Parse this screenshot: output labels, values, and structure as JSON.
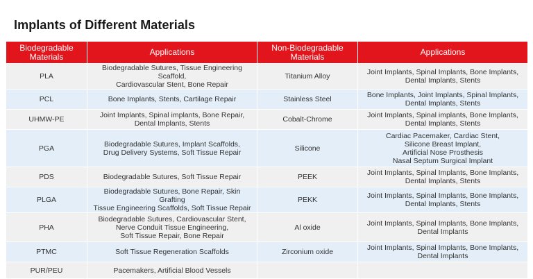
{
  "title": "Implants of Different Materials",
  "headers": [
    "Biodegradable\nMaterials",
    "Applications",
    "Non-Biodegradable\nMaterials",
    "Applications"
  ],
  "rows": [
    [
      "PLA",
      "Biodegradable Sutures, Tissue Engineering Scaffold,\nCardiovascular Stent, Bone Repair",
      "Titanium Alloy",
      "Joint Implants, Spinal Implants, Bone Implants,\nDental Implants, Stents"
    ],
    [
      "PCL",
      "Bone Implants, Stents, Cartilage Repair",
      "Stainless Steel",
      "Bone Implants, Joint Implants, Spinal Implants,\nDental Implants, Stents"
    ],
    [
      "UHMW-PE",
      "Joint Implants, Spinal implants, Bone Repair,\nDental Implants, Stents",
      "Cobalt-Chrome",
      "Joint Implants, Spinal implants, Bone Implants,\nDental Implants, Stents"
    ],
    [
      "PGA",
      "Biodegradable Sutures, Implant Scaffolds,\nDrug Delivery Systems, Soft Tissue Repair",
      "Silicone",
      "Cardiac Pacemaker, Cardiac Stent,\nSilicone Breast Implant,\nArtificial Nose Prosthesis\nNasal Septum Surgical Implant"
    ],
    [
      "PDS",
      "Biodegradable Sutures, Soft Tissue Repair",
      "PEEK",
      "Joint Implants, Spinal Implants, Bone Implants,\nDental Implants, Stents"
    ],
    [
      "PLGA",
      "Biodegradable Sutures, Bone Repair, Skin Grafting\nTissue Engineering Scaffolds, Soft Tissue Repair",
      "PEKK",
      "Joint Implants, Spinal Implants, Bone Implants,\nDental Implants, Stents"
    ],
    [
      "PHA",
      "Biodegradable Sutures, Cardiovascular Stent,\nNerve Conduit Tissue Engineering,\nSoft Tissue Repair, Bone Repair",
      "Al oxide",
      "Joint Implants, Spinal Implants, Bone Implants,\nDental Implants"
    ],
    [
      "PTMC",
      "Soft Tissue Regeneration Scaffolds",
      "Zirconium oxide",
      "Joint Implants, Spinal Implants, Bone Implants,\nDental Implants"
    ],
    [
      "PUR/PEU",
      "Pacemakers, Artificial Blood Vessels",
      "",
      ""
    ]
  ],
  "colors": {
    "header_bg": "#e2141c",
    "header_text": "#ffffff",
    "row_gray": "#f0f0f0",
    "row_blue": "#e3eef8"
  }
}
